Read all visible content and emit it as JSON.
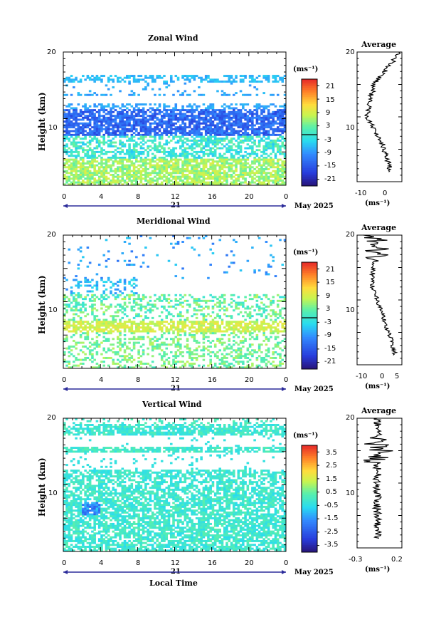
{
  "chart_data": [
    {
      "type": "heatmap",
      "title": "Zonal Wind",
      "ylabel": "Height (km)",
      "xlabel": "",
      "ylim": [
        0,
        20
      ],
      "xlim": [
        0,
        24
      ],
      "y_ticks": [
        "20",
        "10"
      ],
      "x_ticks": [
        "0",
        "4",
        "8",
        "12",
        "16",
        "20",
        "0"
      ],
      "date_label": "21",
      "month_label": "May 2025",
      "colorbar": {
        "unit": "(ms⁻¹)",
        "ticks": [
          "21",
          "15",
          "9",
          "3",
          "-3",
          "-9",
          "-15",
          "-21"
        ],
        "range": [
          -24,
          24
        ]
      },
      "profile": {
        "title": "Average",
        "unit": "(ms⁻¹)",
        "x_ticks": [
          "-10",
          "0"
        ],
        "y_ticks": [
          "20",
          "10"
        ],
        "xlim": [
          -14,
          5
        ]
      }
    },
    {
      "type": "heatmap",
      "title": "Meridional Wind",
      "ylabel": "Height (km)",
      "xlabel": "",
      "ylim": [
        0,
        20
      ],
      "xlim": [
        0,
        24
      ],
      "y_ticks": [
        "20",
        "10"
      ],
      "x_ticks": [
        "0",
        "4",
        "8",
        "12",
        "16",
        "20",
        "0"
      ],
      "date_label": "21",
      "month_label": "May 2025",
      "colorbar": {
        "unit": "(ms⁻¹)",
        "ticks": [
          "21",
          "15",
          "9",
          "3",
          "-3",
          "-9",
          "-15",
          "-21"
        ],
        "range": [
          -24,
          24
        ]
      },
      "profile": {
        "title": "Average",
        "unit": "(ms⁻¹)",
        "x_ticks": [
          "-10",
          "0",
          "5"
        ],
        "y_ticks": [
          "20",
          "10"
        ],
        "xlim": [
          -14,
          7
        ]
      }
    },
    {
      "type": "heatmap",
      "title": "Vertical Wind",
      "ylabel": "Height (km)",
      "xlabel": "Local Time",
      "ylim": [
        0,
        20
      ],
      "xlim": [
        0,
        24
      ],
      "y_ticks": [
        "20",
        "10"
      ],
      "x_ticks": [
        "0",
        "4",
        "8",
        "12",
        "16",
        "20",
        "0"
      ],
      "date_label": "21",
      "month_label": "May 2025",
      "colorbar": {
        "unit": "(ms⁻¹)",
        "ticks": [
          "3.5",
          "2.5",
          "1.5",
          "0.5",
          "-0.5",
          "-1.5",
          "-2.5",
          "-3.5"
        ],
        "range": [
          -4,
          4
        ]
      },
      "profile": {
        "title": "Average",
        "unit": "(ms⁻¹)",
        "x_ticks": [
          "-0.3",
          "0.2"
        ],
        "y_ticks": [
          "20",
          "10"
        ],
        "xlim": [
          -0.45,
          0.3
        ]
      }
    }
  ],
  "colors": {
    "axis": "#000000",
    "background": "#ffffff",
    "profile_line": "#000000"
  }
}
